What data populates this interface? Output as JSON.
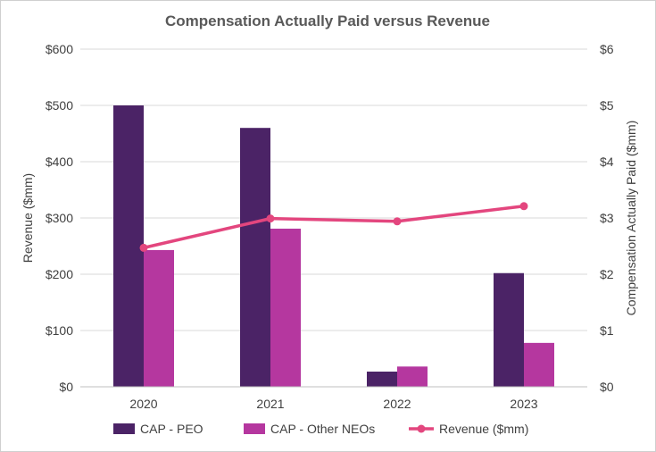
{
  "chart_data": {
    "type": "bar",
    "title": "Compensation Actually Paid versus Revenue",
    "categories": [
      "2020",
      "2021",
      "2022",
      "2023"
    ],
    "series": [
      {
        "name": "CAP - PEO",
        "type": "bar",
        "axis": "right",
        "color": "#4b2366",
        "values": [
          5.0,
          4.6,
          0.27,
          2.02
        ]
      },
      {
        "name": "CAP - Other NEOs",
        "type": "bar",
        "axis": "right",
        "color": "#b5379f",
        "values": [
          2.43,
          2.81,
          0.36,
          0.78
        ]
      },
      {
        "name": "Revenue ($mm)",
        "type": "line",
        "axis": "left",
        "color": "#e3467e",
        "values": [
          247,
          299,
          294,
          321
        ]
      }
    ],
    "ylabel": "Revenue ($mm)",
    "ylim": [
      0,
      600
    ],
    "y_ticks": [
      "$0",
      "$100",
      "$200",
      "$300",
      "$400",
      "$500",
      "$600"
    ],
    "y2label": "Compensation Actually Paid ($mm)",
    "y2lim": [
      0,
      6
    ],
    "y2_ticks": [
      "$0",
      "$1",
      "$2",
      "$3",
      "$4",
      "$5",
      "$6"
    ],
    "grid": true,
    "legend_position": "bottom",
    "colors": {
      "grid": "#d9d9d9",
      "axis": "#bfbfbf"
    }
  }
}
